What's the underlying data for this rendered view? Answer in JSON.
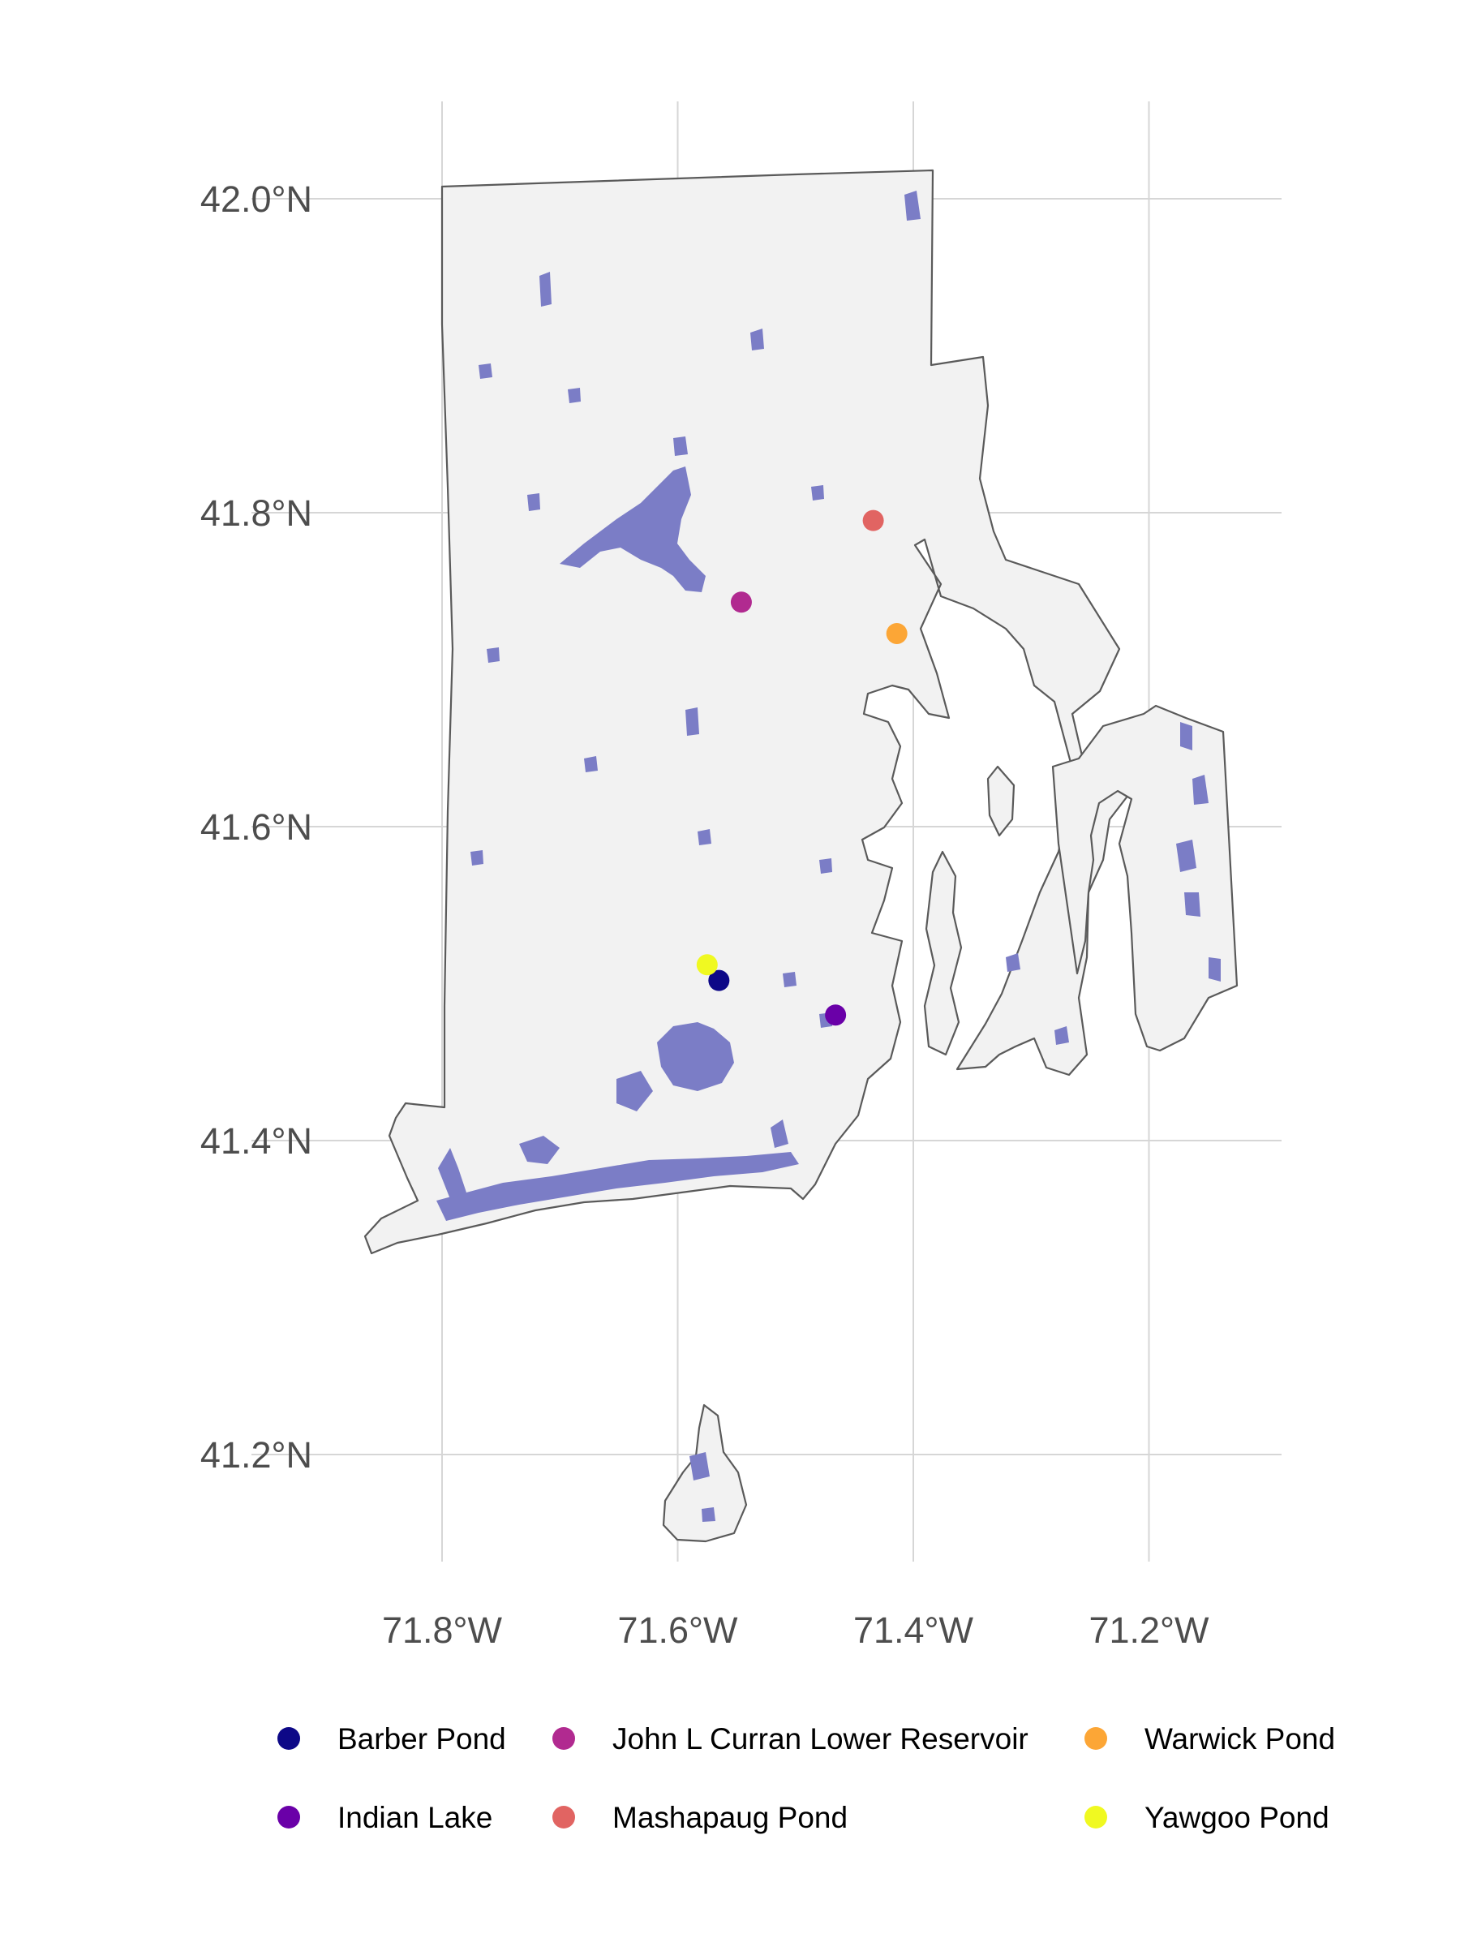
{
  "chart_data": {
    "type": "map",
    "region": "Rhode Island",
    "xlim": [
      -71.88,
      -71.08
    ],
    "ylim": [
      41.13,
      42.06
    ],
    "x_ticks": [
      {
        "value": -71.8,
        "label": "71.8°W"
      },
      {
        "value": -71.6,
        "label": "71.6°W"
      },
      {
        "value": -71.4,
        "label": "71.4°W"
      },
      {
        "value": -71.2,
        "label": "71.2°W"
      }
    ],
    "y_ticks": [
      {
        "value": 42.0,
        "label": "42.0°N"
      },
      {
        "value": 41.8,
        "label": "41.8°N"
      },
      {
        "value": 41.6,
        "label": "41.6°N"
      },
      {
        "value": 41.4,
        "label": "41.4°N"
      },
      {
        "value": 41.2,
        "label": "41.2°N"
      }
    ],
    "grid": true,
    "legend_position": "bottom",
    "land_color": "#f2f2f2",
    "border_color": "#5a5a5a",
    "water_color": "#7b7dc6",
    "points": [
      {
        "name": "Barber Pond",
        "lon": -71.565,
        "lat": 41.502,
        "color": "#0d0887"
      },
      {
        "name": "Indian Lake",
        "lon": -71.466,
        "lat": 41.48,
        "color": "#6a00a8"
      },
      {
        "name": "John L Curran Lower Reservoir",
        "lon": -71.546,
        "lat": 41.743,
        "color": "#b12a90"
      },
      {
        "name": "Mashapaug Pond",
        "lon": -71.434,
        "lat": 41.795,
        "color": "#e16462"
      },
      {
        "name": "Warwick Pond",
        "lon": -71.414,
        "lat": 41.723,
        "color": "#fca636"
      },
      {
        "name": "Yawgoo Pond",
        "lon": -71.575,
        "lat": 41.512,
        "color": "#f0f921"
      }
    ]
  },
  "legend": {
    "items": [
      {
        "label": "Barber Pond",
        "color": "#0d0887"
      },
      {
        "label": "John L Curran Lower Reservoir",
        "color": "#b12a90"
      },
      {
        "label": "Warwick Pond",
        "color": "#fca636"
      },
      {
        "label": "Indian Lake",
        "color": "#6a00a8"
      },
      {
        "label": "Mashapaug Pond",
        "color": "#e16462"
      },
      {
        "label": "Yawgoo Pond",
        "color": "#f0f921"
      }
    ]
  }
}
